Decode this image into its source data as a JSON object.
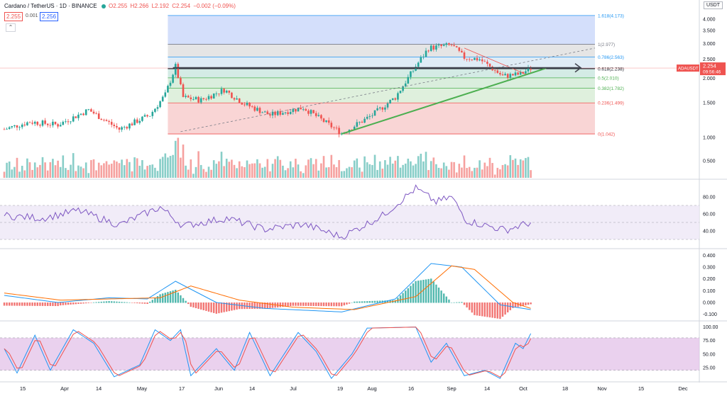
{
  "header": {
    "symbol": "Cardano / TetherUS · 1D · BINANCE",
    "open": "O2.255",
    "high": "H2.266",
    "low": "L2.192",
    "close": "C2.254",
    "change": "−0.002 (−0.09%)",
    "bid": "2.255",
    "spread": "0.001",
    "ask": "2.256",
    "indicator_count": "8",
    "currency": "USDT"
  },
  "colors": {
    "up": "#26a69a",
    "down": "#ef5350",
    "rsi": "#7e57c2",
    "macd": "#2196f3",
    "signal": "#ff6d00",
    "stoch_k": "#2196f3",
    "stoch_d": "#ef5350",
    "trend": "#4caf50",
    "axis_text": "#131722"
  },
  "chart_data": [
    {
      "type": "candlestick",
      "title": "Cardano / TetherUS",
      "x_labels": [
        "15",
        "Apr",
        "14",
        "May",
        "17",
        "Jun",
        "14",
        "Jul",
        "19",
        "Aug",
        "16",
        "Sep",
        "14",
        "Oct",
        "18",
        "Nov",
        "15",
        "Dec"
      ],
      "y_ticks": [
        "4.000",
        "3.500",
        "3.000",
        "2.500",
        "2.000",
        "1.500",
        "1.000",
        "0.500"
      ],
      "ylim": [
        0.0,
        4.4
      ],
      "log_scale": true,
      "last_price_label": "ADAUSDT",
      "last_price": "2.254",
      "countdown": "09:56:46",
      "anchors": [
        {
          "t": "Mar 10",
          "v": 1.1
        },
        {
          "t": "Mar 20",
          "v": 1.2
        },
        {
          "t": "Mar 31",
          "v": 1.16
        },
        {
          "t": "Apr 12",
          "v": 1.38
        },
        {
          "t": "Apr 24",
          "v": 1.1
        },
        {
          "t": "May 06",
          "v": 1.3
        },
        {
          "t": "May 12",
          "v": 1.65
        },
        {
          "t": "May 16",
          "v": 2.3
        },
        {
          "t": "May 19",
          "v": 1.6
        },
        {
          "t": "May 26",
          "v": 1.55
        },
        {
          "t": "Jun 04",
          "v": 1.75
        },
        {
          "t": "Jun 12",
          "v": 1.48
        },
        {
          "t": "Jun 22",
          "v": 1.3
        },
        {
          "t": "Jul 05",
          "v": 1.42
        },
        {
          "t": "Jul 20",
          "v": 1.05
        },
        {
          "t": "Aug 01",
          "v": 1.3
        },
        {
          "t": "Aug 10",
          "v": 1.6
        },
        {
          "t": "Aug 18",
          "v": 2.3
        },
        {
          "t": "Aug 23",
          "v": 2.85
        },
        {
          "t": "Sep 01",
          "v": 2.95
        },
        {
          "t": "Sep 06",
          "v": 2.55
        },
        {
          "t": "Sep 12",
          "v": 2.5
        },
        {
          "t": "Sep 21",
          "v": 2.05
        },
        {
          "t": "Sep 28",
          "v": 2.1
        },
        {
          "t": "Oct 02",
          "v": 2.254
        }
      ],
      "volume_unit": "relative"
    },
    {
      "type": "fibonacci",
      "levels": [
        {
          "ratio": "0",
          "label": "0(1.042)",
          "value": 1.042,
          "color": "#ef5350"
        },
        {
          "ratio": "0.236",
          "label": "0.236(1.499)",
          "value": 1.499,
          "color": "#ef5350"
        },
        {
          "ratio": "0.382",
          "label": "0.382(1.782)",
          "value": 1.782,
          "color": "#4caf50"
        },
        {
          "ratio": "0.5",
          "label": "0.5(2.010)",
          "value": 2.01,
          "color": "#4caf50"
        },
        {
          "ratio": "0.618",
          "label": "0.618(2.238)",
          "value": 2.238,
          "color": "#131722"
        },
        {
          "ratio": "0.786",
          "label": "0.786(2.563)",
          "value": 2.563,
          "color": "#2196f3"
        },
        {
          "ratio": "1",
          "label": "1(2.977)",
          "value": 2.977,
          "color": "#787b86"
        },
        {
          "ratio": "1.618",
          "label": "1.618(4.173)",
          "value": 4.173,
          "color": "#2196f3"
        }
      ]
    },
    {
      "type": "line",
      "name": "RSI",
      "y_ticks": [
        "80.00",
        "60.00",
        "40.00"
      ],
      "ylim": [
        20,
        100
      ],
      "band": [
        30,
        70
      ],
      "midline": 50,
      "anchors": [
        {
          "t": "Mar 10",
          "v": 58
        },
        {
          "t": "Mar 25",
          "v": 55
        },
        {
          "t": "Apr 08",
          "v": 64
        },
        {
          "t": "Apr 24",
          "v": 47
        },
        {
          "t": "May 10",
          "v": 68
        },
        {
          "t": "May 19",
          "v": 46
        },
        {
          "t": "Jun 05",
          "v": 55
        },
        {
          "t": "Jun 20",
          "v": 42
        },
        {
          "t": "Jul 05",
          "v": 48
        },
        {
          "t": "Jul 20",
          "v": 33
        },
        {
          "t": "Aug 05",
          "v": 58
        },
        {
          "t": "Aug 18",
          "v": 90
        },
        {
          "t": "Aug 26",
          "v": 74
        },
        {
          "t": "Sep 01",
          "v": 80
        },
        {
          "t": "Sep 07",
          "v": 52
        },
        {
          "t": "Sep 22",
          "v": 41
        },
        {
          "t": "Oct 02",
          "v": 50
        }
      ]
    },
    {
      "type": "bar+line",
      "name": "MACD",
      "y_ticks": [
        "0.400",
        "0.300",
        "0.200",
        "0.100",
        "0.000",
        "-0.100"
      ],
      "ylim": [
        -0.15,
        0.45
      ],
      "macd": [
        {
          "t": "Mar 10",
          "v": 0.06
        },
        {
          "t": "Mar 31",
          "v": 0.0
        },
        {
          "t": "Apr 20",
          "v": 0.04
        },
        {
          "t": "May 05",
          "v": 0.03
        },
        {
          "t": "May 16",
          "v": 0.18
        },
        {
          "t": "Jun 01",
          "v": 0.0
        },
        {
          "t": "Jun 20",
          "v": -0.05
        },
        {
          "t": "Jul 20",
          "v": -0.08
        },
        {
          "t": "Aug 10",
          "v": 0.03
        },
        {
          "t": "Aug 24",
          "v": 0.33
        },
        {
          "t": "Sep 05",
          "v": 0.3
        },
        {
          "t": "Sep 20",
          "v": -0.02
        },
        {
          "t": "Oct 02",
          "v": -0.06
        }
      ],
      "signal": [
        {
          "t": "Mar 10",
          "v": 0.08
        },
        {
          "t": "Apr 01",
          "v": 0.02
        },
        {
          "t": "Apr 20",
          "v": 0.03
        },
        {
          "t": "May 10",
          "v": 0.04
        },
        {
          "t": "May 22",
          "v": 0.14
        },
        {
          "t": "Jun 10",
          "v": 0.02
        },
        {
          "t": "Jul 01",
          "v": -0.04
        },
        {
          "t": "Jul 25",
          "v": -0.06
        },
        {
          "t": "Aug 18",
          "v": 0.05
        },
        {
          "t": "Sep 01",
          "v": 0.31
        },
        {
          "t": "Sep 10",
          "v": 0.28
        },
        {
          "t": "Sep 25",
          "v": 0.0
        },
        {
          "t": "Oct 02",
          "v": -0.05
        }
      ]
    },
    {
      "type": "line",
      "name": "Stochastic",
      "y_ticks": [
        "100.00",
        "75.00",
        "50.00",
        "25.00"
      ],
      "ylim": [
        0,
        110
      ],
      "band": [
        20,
        80
      ],
      "k_anchors": [
        {
          "t": "Mar 10",
          "v": 60
        },
        {
          "t": "Mar 15",
          "v": 15
        },
        {
          "t": "Mar 22",
          "v": 85
        },
        {
          "t": "Mar 28",
          "v": 20
        },
        {
          "t": "Apr 06",
          "v": 95
        },
        {
          "t": "Apr 14",
          "v": 70
        },
        {
          "t": "Apr 22",
          "v": 8
        },
        {
          "t": "May 02",
          "v": 30
        },
        {
          "t": "May 08",
          "v": 95
        },
        {
          "t": "May 14",
          "v": 75
        },
        {
          "t": "May 18",
          "v": 95
        },
        {
          "t": "May 22",
          "v": 10
        },
        {
          "t": "Jun 01",
          "v": 60
        },
        {
          "t": "Jun 08",
          "v": 20
        },
        {
          "t": "Jun 14",
          "v": 90
        },
        {
          "t": "Jun 22",
          "v": 10
        },
        {
          "t": "Jul 03",
          "v": 90
        },
        {
          "t": "Jul 10",
          "v": 55
        },
        {
          "t": "Jul 16",
          "v": 5
        },
        {
          "t": "Jul 24",
          "v": 50
        },
        {
          "t": "Jul 30",
          "v": 98
        },
        {
          "t": "Aug 18",
          "v": 100
        },
        {
          "t": "Aug 24",
          "v": 35
        },
        {
          "t": "Aug 30",
          "v": 70
        },
        {
          "t": "Sep 06",
          "v": 10
        },
        {
          "t": "Sep 14",
          "v": 20
        },
        {
          "t": "Sep 20",
          "v": 5
        },
        {
          "t": "Sep 26",
          "v": 70
        },
        {
          "t": "Sep 29",
          "v": 60
        },
        {
          "t": "Oct 02",
          "v": 88
        }
      ]
    }
  ]
}
